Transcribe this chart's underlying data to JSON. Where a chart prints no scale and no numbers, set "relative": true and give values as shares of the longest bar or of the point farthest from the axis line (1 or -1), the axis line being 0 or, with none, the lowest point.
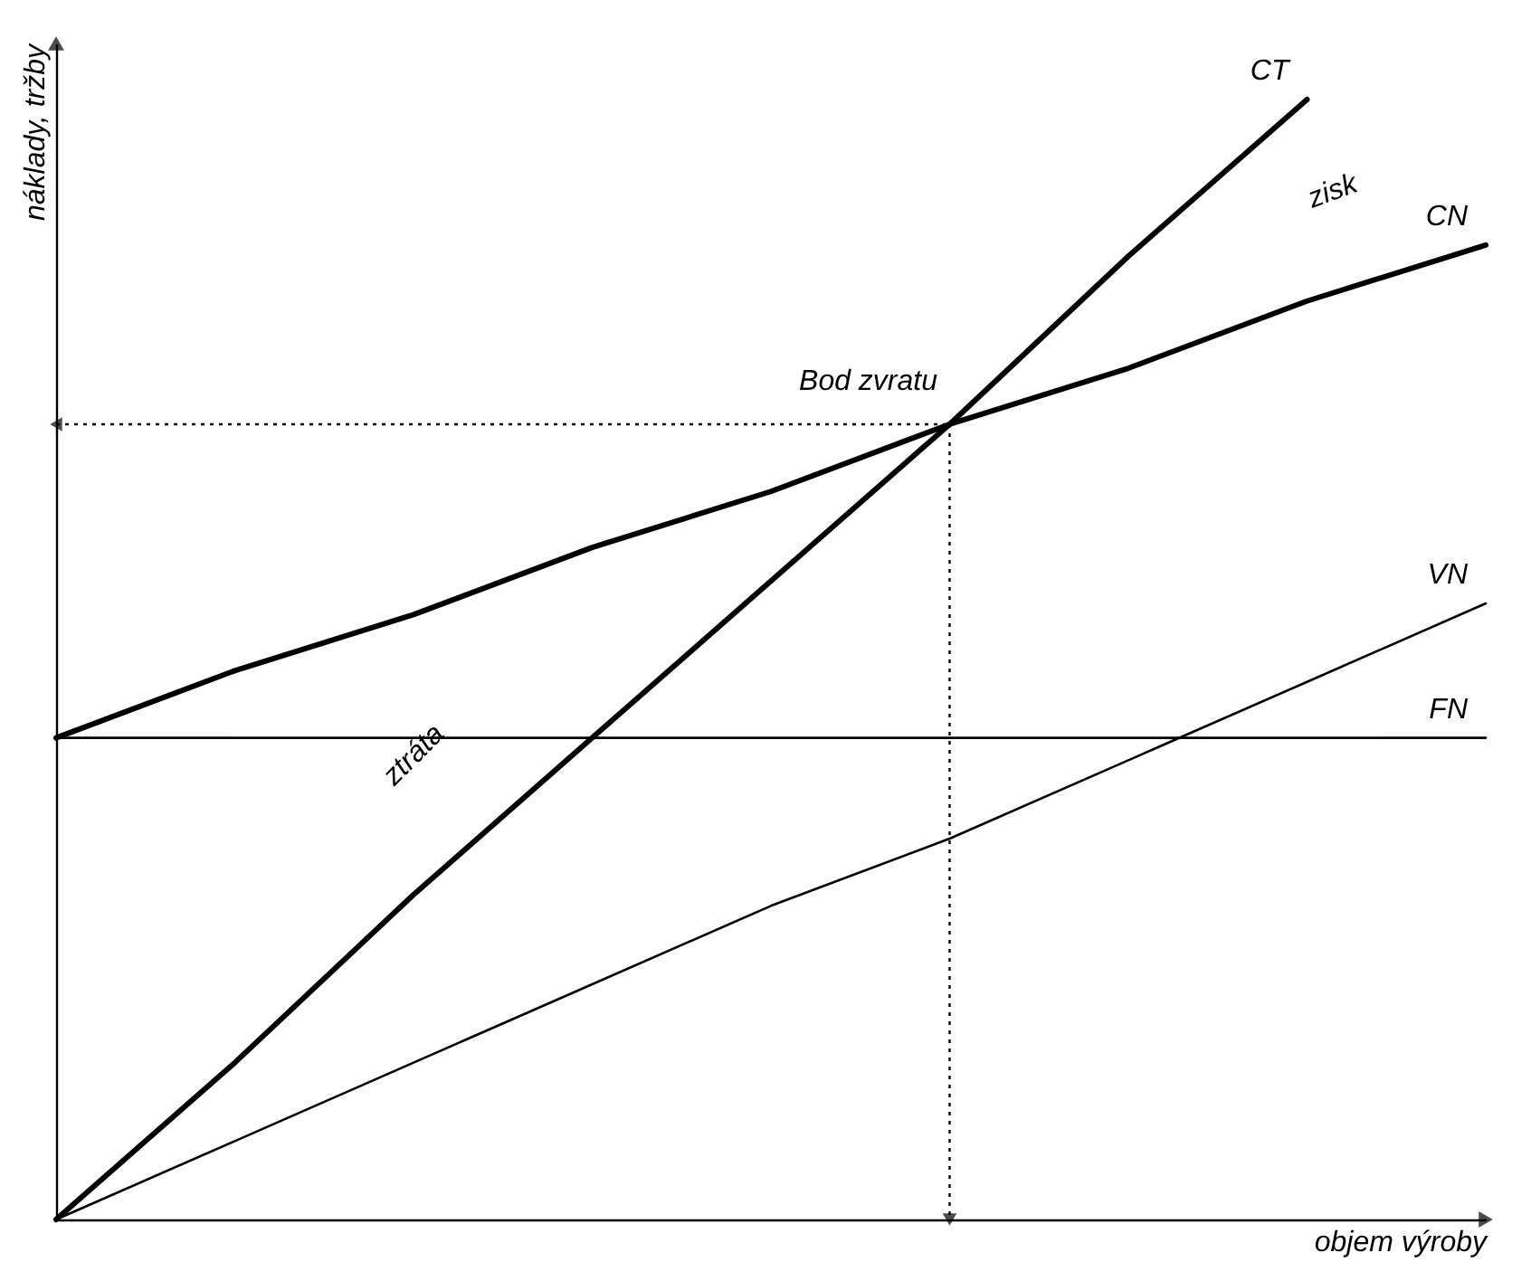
{
  "chart_data": {
    "type": "line",
    "relative": true,
    "xlabel": "objem výroby",
    "ylabel": "náklady, tržby",
    "legend": false,
    "grid": false,
    "marker": "none",
    "categories": [
      null,
      null,
      null,
      null,
      null,
      null,
      null,
      null,
      null
    ],
    "series": [
      {
        "name": "CT",
        "color": "#000000",
        "values": [
          0,
          0.14,
          0.29,
          0.43,
          0.57,
          0.71,
          0.86,
          1,
          null
        ]
      },
      {
        "name": "CN",
        "color": "#000000",
        "values": [
          0.43,
          0.49,
          0.54,
          0.6,
          0.65,
          0.71,
          0.76,
          0.82,
          0.87
        ]
      },
      {
        "name": "VN",
        "color": "#000000",
        "values": [
          0,
          0.07,
          0.14,
          0.21,
          0.28,
          0.34,
          0.41,
          0.48,
          0.55
        ]
      },
      {
        "name": "FN",
        "color": "#000000",
        "values": [
          0.43,
          0.43,
          0.43,
          0.43,
          0.43,
          0.43,
          0.43,
          0.43,
          0.43
        ]
      }
    ],
    "annotations": [
      "Bod zvratu",
      "zisk",
      "ztráta"
    ]
  }
}
